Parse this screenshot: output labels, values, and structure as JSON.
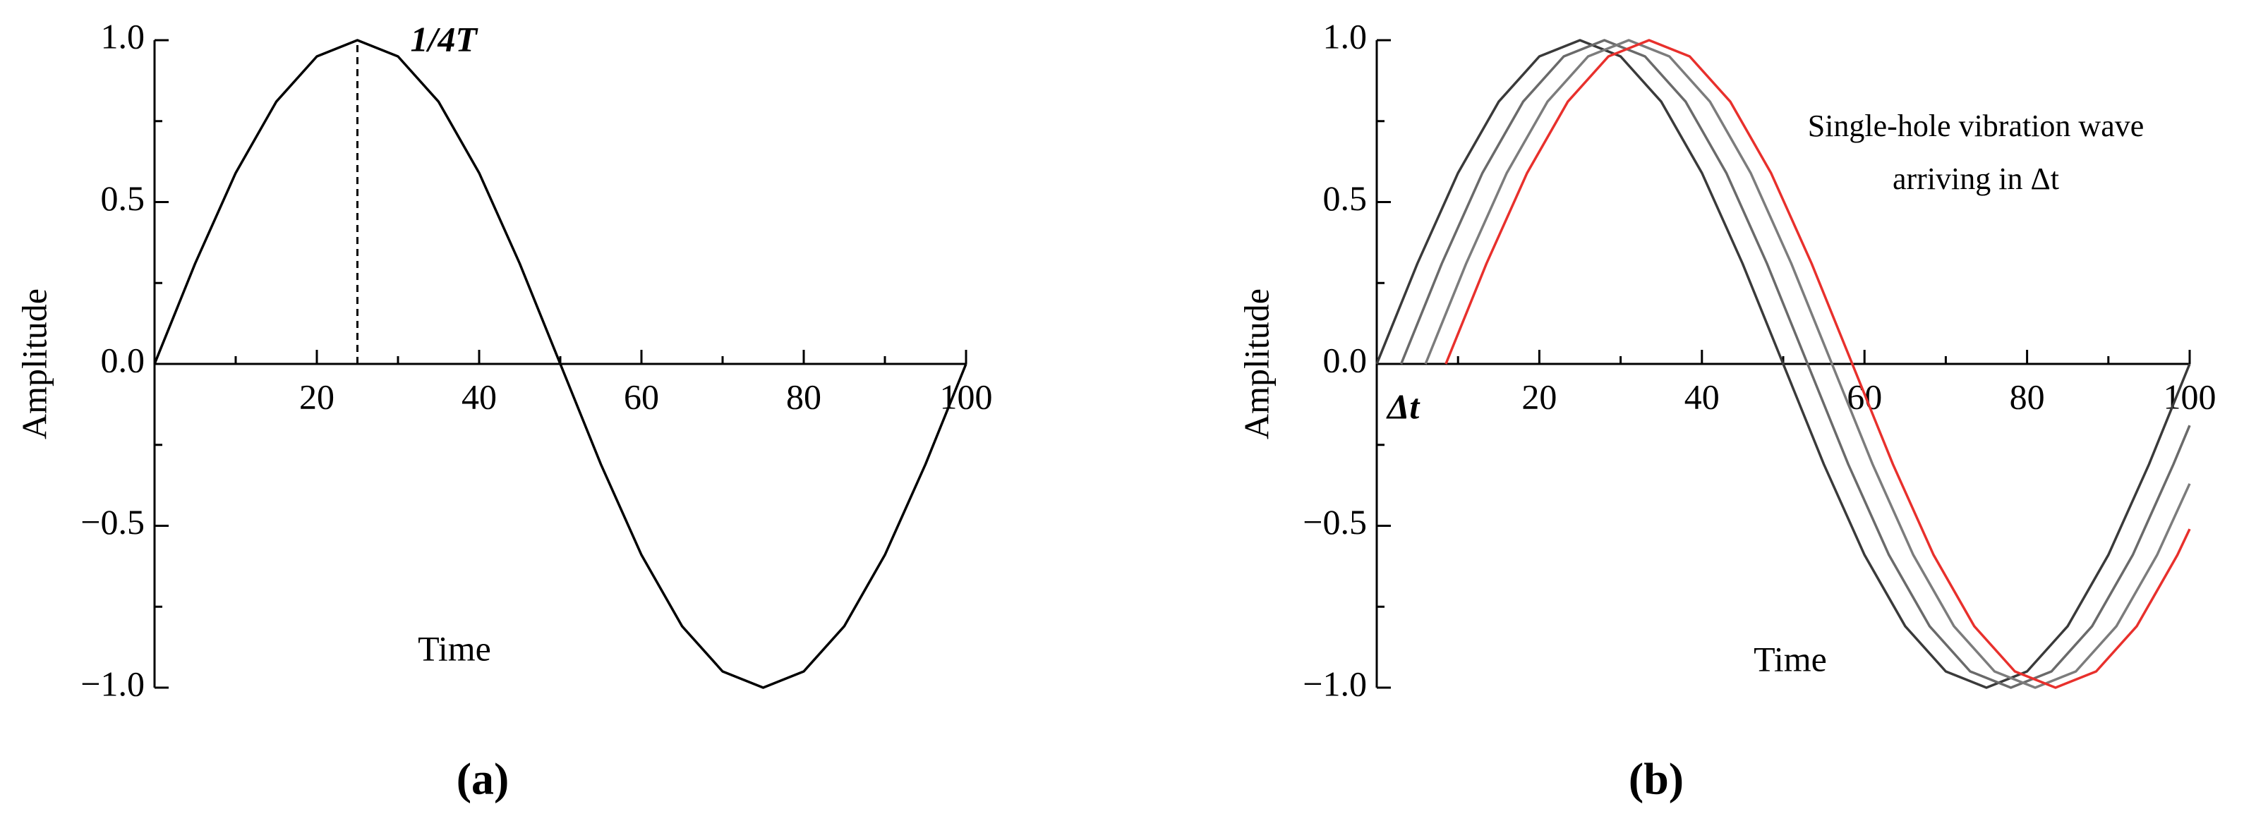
{
  "chart_data": [
    {
      "type": "line",
      "panel_label": "(a)",
      "x_label": "Time",
      "y_label": "Amplitude",
      "xlim": [
        0,
        100
      ],
      "ylim": [
        -1,
        1
      ],
      "xticks": [
        20,
        40,
        60,
        80,
        100
      ],
      "x_minor_ticks": [
        10,
        30,
        50,
        70,
        90
      ],
      "yticks": [
        {
          "value": -1,
          "label": "−1.0"
        },
        {
          "value": -0.5,
          "label": "−0.5"
        },
        {
          "value": 0,
          "label": "0.0"
        },
        {
          "value": 0.5,
          "label": "0.5"
        },
        {
          "value": 1,
          "label": "1.0"
        }
      ],
      "y_minor_ticks": [
        -0.75,
        -0.25,
        0.25,
        0.75
      ],
      "annotation": {
        "text": "1/4T",
        "x": 25,
        "y": 1
      },
      "series": [
        {
          "color": "#000000",
          "x": [
            0,
            5,
            10,
            15,
            20,
            25,
            30,
            35,
            40,
            45,
            50,
            55,
            60,
            65,
            70,
            75,
            80,
            85,
            90,
            95,
            100
          ],
          "values": [
            0,
            0.31,
            0.59,
            0.81,
            0.95,
            1,
            0.95,
            0.81,
            0.59,
            0.31,
            0,
            -0.31,
            -0.59,
            -0.81,
            -0.95,
            -1,
            -0.95,
            -0.81,
            -0.59,
            -0.31,
            0
          ]
        }
      ]
    },
    {
      "type": "line",
      "panel_label": "(b)",
      "x_label": "Time",
      "y_label": "Amplitude",
      "xlim": [
        0,
        100
      ],
      "ylim": [
        -1,
        1
      ],
      "xticks": [
        20,
        40,
        60,
        80,
        100
      ],
      "x_minor_ticks": [
        10,
        30,
        50,
        70,
        90
      ],
      "yticks": [
        {
          "value": -1,
          "label": "−1.0"
        },
        {
          "value": -0.5,
          "label": "−0.5"
        },
        {
          "value": 0,
          "label": "0.0"
        },
        {
          "value": 0.5,
          "label": "0.5"
        },
        {
          "value": 1,
          "label": "1.0"
        }
      ],
      "y_minor_ticks": [
        -0.75,
        -0.25,
        0.25,
        0.75
      ],
      "shift_label": "Δt",
      "note": [
        "Single-hole vibration wave",
        "arriving in Δt"
      ],
      "series": [
        {
          "color": "#3a3a3a",
          "x": [
            0,
            5,
            10,
            15,
            20,
            25,
            30,
            35,
            40,
            45,
            50,
            55,
            60,
            65,
            70,
            75,
            80,
            85,
            90,
            95,
            100
          ],
          "values": [
            0,
            0.31,
            0.59,
            0.81,
            0.95,
            1,
            0.95,
            0.81,
            0.59,
            0.31,
            0,
            -0.31,
            -0.59,
            -0.81,
            -0.95,
            -1,
            -0.95,
            -0.81,
            -0.59,
            -0.31,
            0
          ]
        },
        {
          "color": "#6a6a6a",
          "x": [
            3,
            8,
            13,
            18,
            23,
            28,
            33,
            38,
            43,
            48,
            53,
            58,
            63,
            68,
            73,
            78,
            83,
            88,
            93,
            98,
            100
          ],
          "values": [
            0,
            0.31,
            0.59,
            0.81,
            0.95,
            1,
            0.95,
            0.81,
            0.59,
            0.31,
            0,
            -0.31,
            -0.59,
            -0.81,
            -0.95,
            -1,
            -0.95,
            -0.81,
            -0.59,
            -0.31,
            -0.19
          ]
        },
        {
          "color": "#7c7c7c",
          "x": [
            6,
            11,
            16,
            21,
            26,
            31,
            36,
            41,
            46,
            51,
            56,
            61,
            66,
            71,
            76,
            81,
            86,
            91,
            96,
            100
          ],
          "values": [
            0,
            0.31,
            0.59,
            0.81,
            0.95,
            1,
            0.95,
            0.81,
            0.59,
            0.31,
            0,
            -0.31,
            -0.59,
            -0.81,
            -0.95,
            -1,
            -0.95,
            -0.81,
            -0.59,
            -0.37
          ]
        },
        {
          "color": "#e8302c",
          "x": [
            8.5,
            13.5,
            18.5,
            23.5,
            28.5,
            33.5,
            38.5,
            43.5,
            48.5,
            53.5,
            58.5,
            63.5,
            68.5,
            73.5,
            78.5,
            83.5,
            88.5,
            93.5,
            98.5,
            100
          ],
          "values": [
            0,
            0.31,
            0.59,
            0.81,
            0.95,
            1,
            0.95,
            0.81,
            0.59,
            0.31,
            0,
            -0.31,
            -0.59,
            -0.81,
            -0.95,
            -1,
            -0.95,
            -0.81,
            -0.59,
            -0.51
          ]
        }
      ]
    }
  ]
}
